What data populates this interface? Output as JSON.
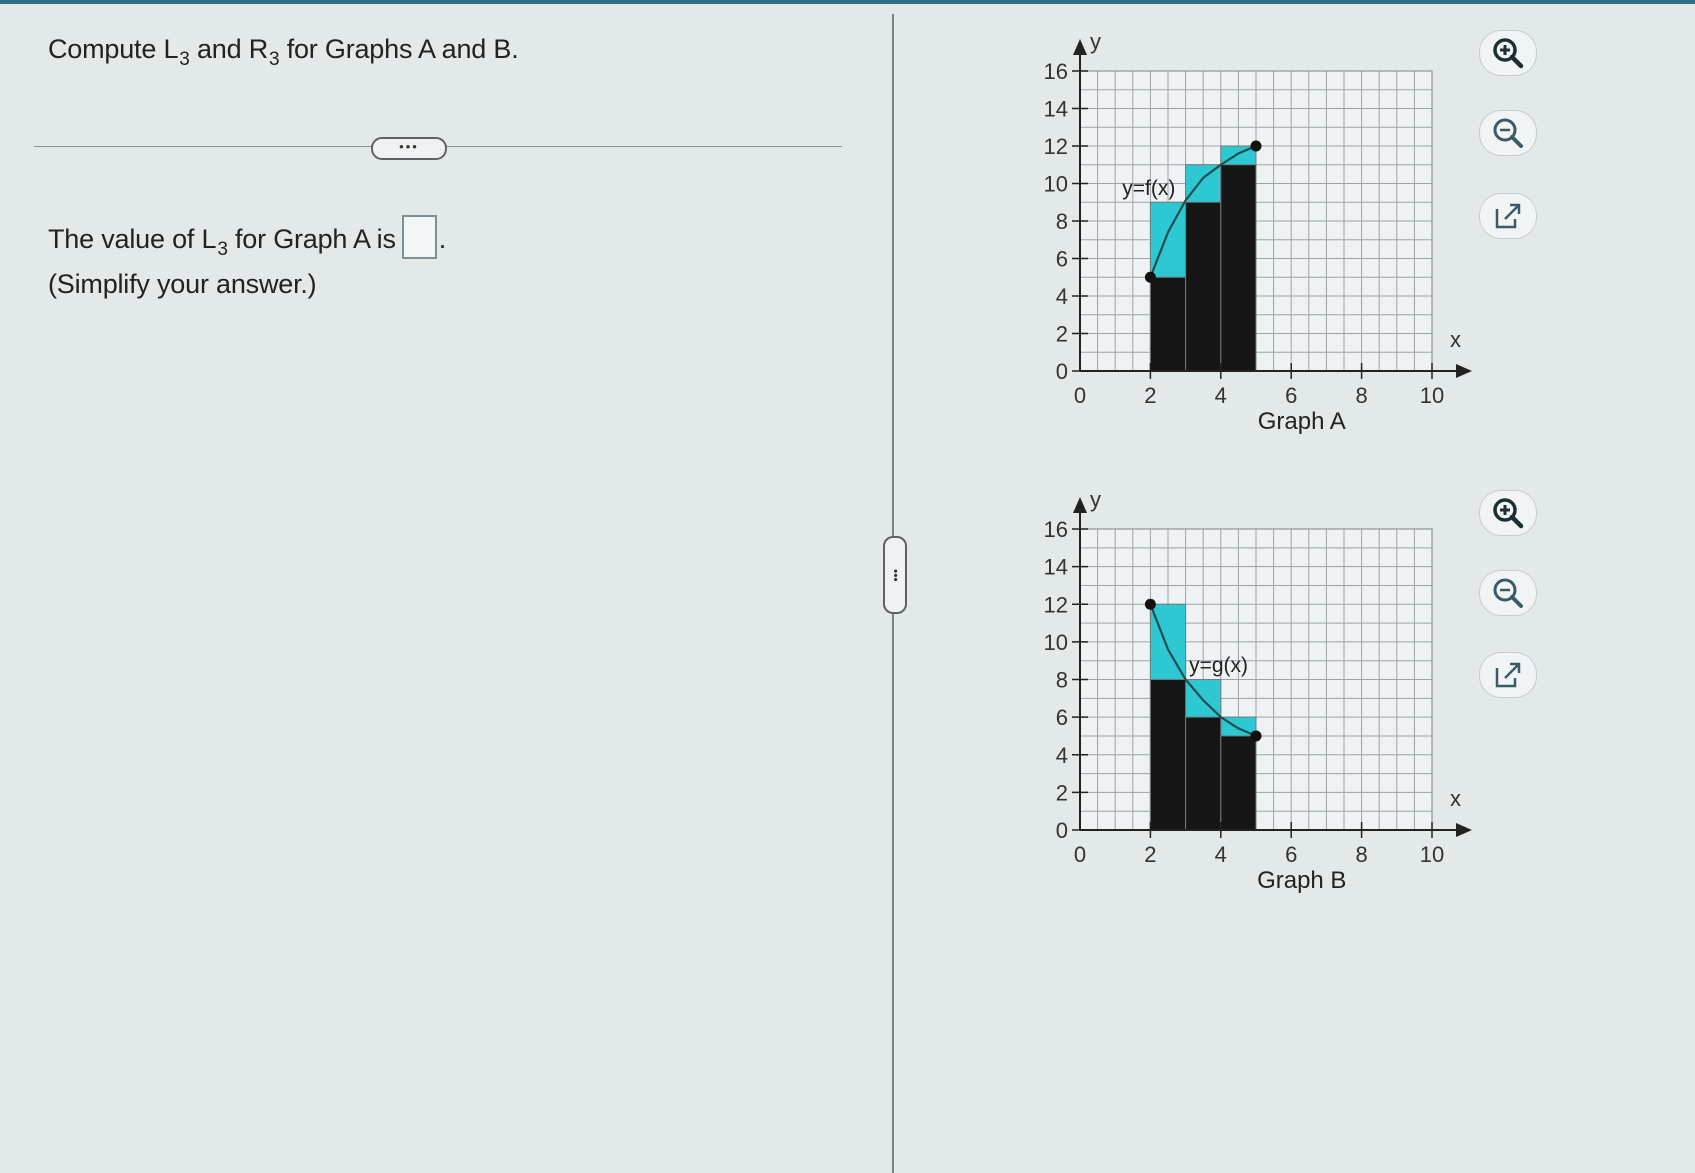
{
  "question": {
    "prefix": "Compute L",
    "l_sub": "3",
    "middle": " and R",
    "r_sub": "3",
    "suffix": " for Graphs A and B."
  },
  "more_button": "•••",
  "prompt": {
    "prefix": "The value of L",
    "sub": "3",
    "suffix": " for Graph A is",
    "after_box": "."
  },
  "hint": "(Simplify your answer.)",
  "pane_handle": "•••",
  "tools": [
    "zoom-in-icon",
    "zoom-out-icon",
    "popout-icon"
  ],
  "chart_data": [
    {
      "type": "line",
      "title": "Graph A",
      "xlabel": "x",
      "ylabel": "y",
      "xlim": [
        0,
        10
      ],
      "ylim": [
        0,
        16
      ],
      "x_ticks": [
        "0",
        "2",
        "4",
        "6",
        "8",
        "10"
      ],
      "y_ticks": [
        "0",
        "2",
        "4",
        "6",
        "8",
        "10",
        "12",
        "14",
        "16"
      ],
      "grid": true,
      "series": [
        {
          "name": "y=f(x)",
          "x": [
            2,
            2.5,
            3,
            3.5,
            4,
            4.5,
            5
          ],
          "y": [
            5,
            7.4,
            9.1,
            10.3,
            11,
            11.6,
            12
          ]
        }
      ],
      "rectangles_left": [
        {
          "x0": 2,
          "x1": 3,
          "height": 5
        },
        {
          "x0": 3,
          "x1": 4,
          "height": 9
        },
        {
          "x0": 4,
          "x1": 5,
          "height": 11
        }
      ],
      "rectangles_right": [
        {
          "x0": 2,
          "x1": 3,
          "height": 9
        },
        {
          "x0": 3,
          "x1": 4,
          "height": 11
        },
        {
          "x0": 4,
          "x1": 5,
          "height": 12
        }
      ],
      "endpoints": [
        [
          2,
          5
        ],
        [
          5,
          12
        ]
      ],
      "colors": {
        "left_rect": "#161616",
        "right_rect": "#2ec8d2",
        "curve": "#1f4e4e"
      }
    },
    {
      "type": "line",
      "title": "Graph B",
      "xlabel": "x",
      "ylabel": "y",
      "xlim": [
        0,
        10
      ],
      "ylim": [
        0,
        16
      ],
      "x_ticks": [
        "0",
        "2",
        "4",
        "6",
        "8",
        "10"
      ],
      "y_ticks": [
        "0",
        "2",
        "4",
        "6",
        "8",
        "10",
        "12",
        "14",
        "16"
      ],
      "grid": true,
      "series": [
        {
          "name": "y=g(x)",
          "x": [
            2,
            2.5,
            3,
            3.5,
            4,
            4.5,
            5
          ],
          "y": [
            12,
            9.6,
            8,
            6.9,
            6,
            5.4,
            5
          ]
        }
      ],
      "rectangles_left": [
        {
          "x0": 2,
          "x1": 3,
          "height": 12
        },
        {
          "x0": 3,
          "x1": 4,
          "height": 8
        },
        {
          "x0": 4,
          "x1": 5,
          "height": 6
        }
      ],
      "rectangles_right": [
        {
          "x0": 2,
          "x1": 3,
          "height": 8
        },
        {
          "x0": 3,
          "x1": 4,
          "height": 6
        },
        {
          "x0": 4,
          "x1": 5,
          "height": 5
        }
      ],
      "endpoints": [
        [
          2,
          12
        ],
        [
          5,
          5
        ]
      ],
      "colors": {
        "left_rect": "#2ec8d2",
        "right_rect": "#161616",
        "curve": "#1f4e4e"
      }
    }
  ]
}
